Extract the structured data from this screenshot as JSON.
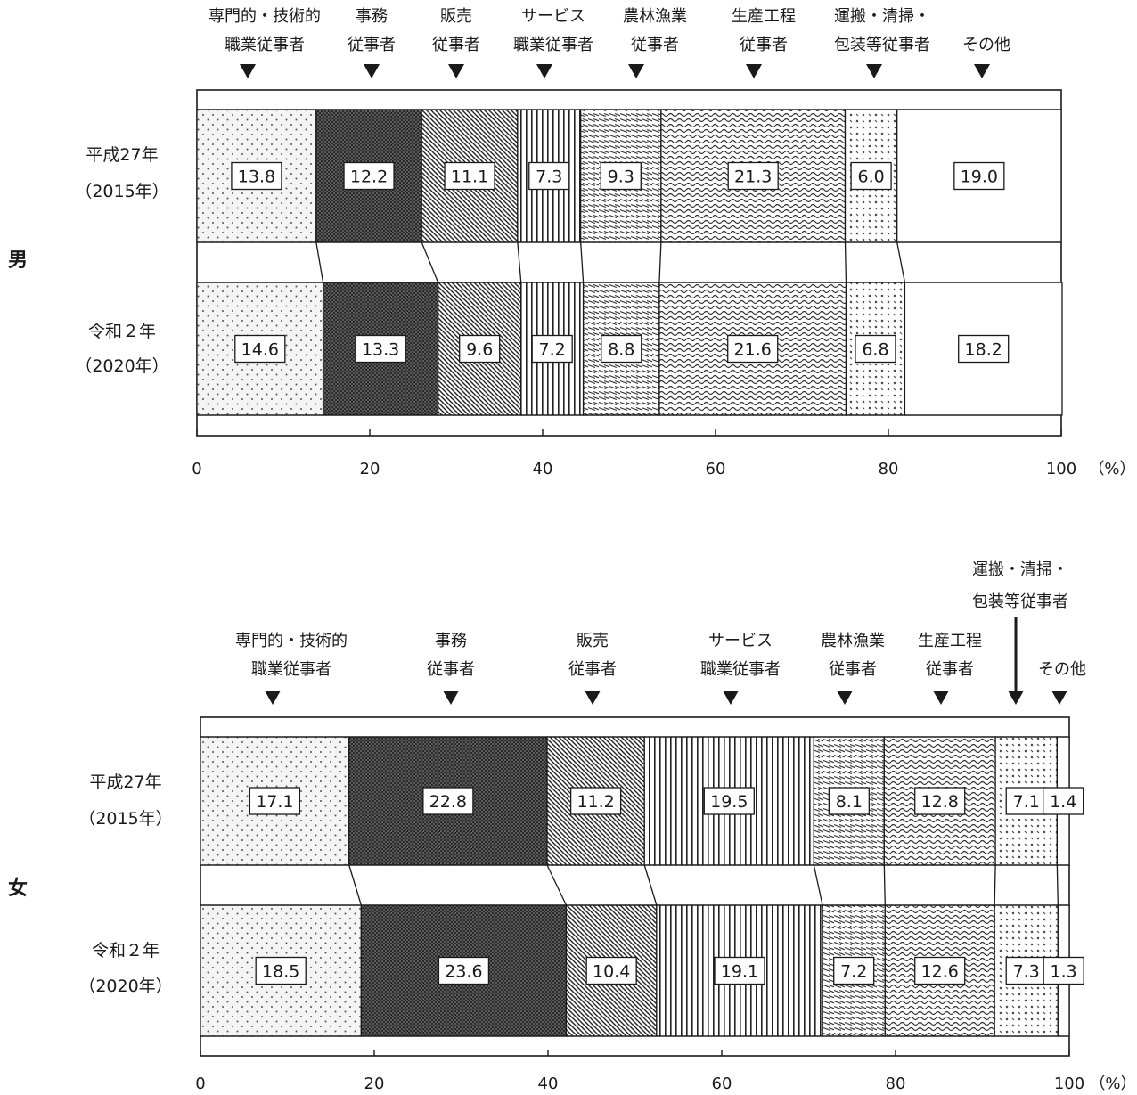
{
  "chart_data": [
    {
      "type": "bar",
      "stacked": true,
      "orientation": "horizontal",
      "percent_stacked": true,
      "title": "男",
      "categories": [
        "平成27年\n（2015年）",
        "令和２年\n（2020年）"
      ],
      "category_lines": [
        [
          "平成27年",
          "（2015年）"
        ],
        [
          "令和２年",
          "（2020年）"
        ]
      ],
      "series": [
        {
          "name": "専門的・技術的職業従事者",
          "label_lines": [
            "専門的・技術的",
            "職業従事者"
          ],
          "pattern": "dots",
          "values": [
            13.8,
            14.6
          ]
        },
        {
          "name": "事務従事者",
          "label_lines": [
            "事務",
            "従事者"
          ],
          "pattern": "dark",
          "values": [
            12.2,
            13.3
          ]
        },
        {
          "name": "販売従事者",
          "label_lines": [
            "販売",
            "従事者"
          ],
          "pattern": "diagonal",
          "values": [
            11.1,
            9.6
          ]
        },
        {
          "name": "サービス職業従事者",
          "label_lines": [
            "サービス",
            "職業従事者"
          ],
          "pattern": "vertical",
          "values": [
            7.3,
            7.2
          ]
        },
        {
          "name": "農林漁業従事者",
          "label_lines": [
            "農林漁業",
            "従事者"
          ],
          "pattern": "dashes",
          "values": [
            9.3,
            8.8
          ]
        },
        {
          "name": "生産工程従事者",
          "label_lines": [
            "生産工程",
            "従事者"
          ],
          "pattern": "waves",
          "values": [
            21.3,
            21.6
          ]
        },
        {
          "name": "運搬・清掃・包装等従事者",
          "label_lines": [
            "運搬・清掃・",
            "包装等従事者"
          ],
          "pattern": "checks",
          "values": [
            6.0,
            6.8
          ]
        },
        {
          "name": "その他",
          "label_lines": [
            "その他"
          ],
          "pattern": "blank",
          "values": [
            19.0,
            18.2
          ]
        }
      ],
      "xlim": [
        0,
        100
      ],
      "xticks": [
        "0",
        "20",
        "40",
        "60",
        "80",
        "100"
      ],
      "unit": "（%）",
      "grid": false,
      "legend": "labels above bars with down arrows"
    },
    {
      "type": "bar",
      "stacked": true,
      "orientation": "horizontal",
      "percent_stacked": true,
      "title": "女",
      "categories": [
        "平成27年\n（2015年）",
        "令和２年\n（2020年）"
      ],
      "category_lines": [
        [
          "平成27年",
          "（2015年）"
        ],
        [
          "令和２年",
          "（2020年）"
        ]
      ],
      "series": [
        {
          "name": "専門的・技術的職業従事者",
          "label_lines": [
            "専門的・技術的",
            "職業従事者"
          ],
          "pattern": "dots",
          "values": [
            17.1,
            18.5
          ]
        },
        {
          "name": "事務従事者",
          "label_lines": [
            "事務",
            "従事者"
          ],
          "pattern": "dark",
          "values": [
            22.8,
            23.6
          ]
        },
        {
          "name": "販売従事者",
          "label_lines": [
            "販売",
            "従事者"
          ],
          "pattern": "diagonal",
          "values": [
            11.2,
            10.4
          ]
        },
        {
          "name": "サービス職業従事者",
          "label_lines": [
            "サービス",
            "職業従事者"
          ],
          "pattern": "vertical",
          "values": [
            19.5,
            19.1
          ]
        },
        {
          "name": "農林漁業従事者",
          "label_lines": [
            "農林漁業",
            "従事者"
          ],
          "pattern": "dashes",
          "values": [
            8.1,
            7.2
          ]
        },
        {
          "name": "生産工程従事者",
          "label_lines": [
            "生産工程",
            "従事者"
          ],
          "pattern": "waves",
          "values": [
            12.8,
            12.6
          ]
        },
        {
          "name": "運搬・清掃・包装等従事者",
          "label_lines": [
            "運搬・清掃・",
            "包装等従事者"
          ],
          "pattern": "checks",
          "values": [
            7.1,
            7.3
          ]
        },
        {
          "name": "その他",
          "label_lines": [
            "その他"
          ],
          "pattern": "blank",
          "values": [
            1.4,
            1.3
          ]
        }
      ],
      "xlim": [
        0,
        100
      ],
      "xticks": [
        "0",
        "20",
        "40",
        "60",
        "80",
        "100"
      ],
      "unit": "（%）",
      "grid": false,
      "legend": "labels above bars with down arrows"
    }
  ],
  "colors": {
    "ink": "#1a1a1a",
    "background": "#ffffff"
  }
}
